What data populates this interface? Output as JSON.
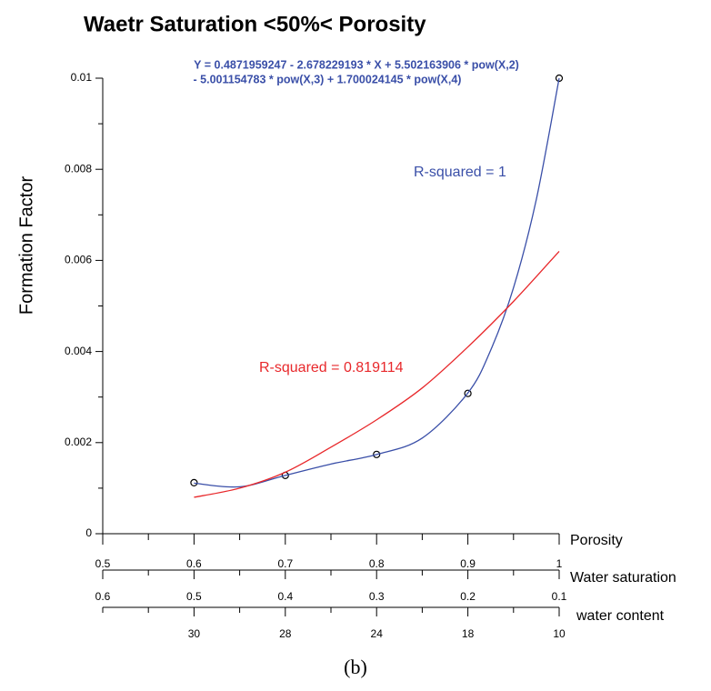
{
  "chart_data": {
    "type": "line",
    "title": "Waetr Saturation <50%< Porosity",
    "equation": [
      "Y = 0.4871959247 - 2.678229193 * X + 5.502163906 * pow(X,2)",
      "- 5.001154783 * pow(X,3) + 1.700024145 * pow(X,4)"
    ],
    "y_label": "Formation Factor",
    "x_label": "Porosity",
    "xlim": [
      0.5,
      1
    ],
    "xticks": [
      0.5,
      0.6,
      0.7,
      0.8,
      0.9,
      1
    ],
    "x_minor_ticks": [
      0.55,
      0.65,
      0.75,
      0.85,
      0.95
    ],
    "ylim": [
      0,
      0.01
    ],
    "yticks": [
      0,
      0.002,
      0.004,
      0.006,
      0.008,
      0.01
    ],
    "y_minor_ticks": [
      0.001,
      0.003,
      0.005,
      0.007,
      0.009
    ],
    "water_saturation_axis": {
      "label": "Water saturation",
      "xlim": [
        0.6,
        0.1
      ],
      "xticks": [
        0.6,
        0.5,
        0.4,
        0.3,
        0.2,
        0.1
      ],
      "minor_ticks": [
        0.55,
        0.45,
        0.35,
        0.25,
        0.15
      ]
    },
    "water_content_axis": {
      "label": "water content",
      "ticks": [
        30,
        28,
        24,
        18,
        10
      ]
    },
    "series": [
      {
        "color": "#000000",
        "marker": "circle",
        "x": [
          0.6,
          0.7,
          0.8,
          0.9,
          1.0
        ],
        "values": [
          0.00112,
          0.00128,
          0.00174,
          0.00308,
          0.01
        ]
      },
      {
        "color": "#3a4fa8",
        "marker": "none",
        "x": [
          0.6,
          0.65,
          0.7,
          0.75,
          0.8,
          0.85,
          0.9,
          0.925,
          0.95,
          0.975,
          1.0
        ],
        "values": [
          0.00111,
          0.00103,
          0.00128,
          0.00153,
          0.00174,
          0.0021,
          0.00309,
          0.00403,
          0.0054,
          0.00734,
          0.01
        ]
      },
      {
        "color": "#e8282b",
        "marker": "none",
        "x": [
          0.6,
          0.65,
          0.7,
          0.75,
          0.8,
          0.85,
          0.9,
          0.95,
          1.0
        ],
        "values": [
          0.0008,
          0.001,
          0.00135,
          0.0019,
          0.0025,
          0.0032,
          0.0041,
          0.0051,
          0.0062
        ]
      }
    ],
    "annotations": [
      {
        "text": "R-squared = 1",
        "color": "#3a4fa8"
      },
      {
        "text": "R-squared = 0.819114",
        "color": "#e8282b"
      }
    ],
    "caption": "(b)"
  }
}
